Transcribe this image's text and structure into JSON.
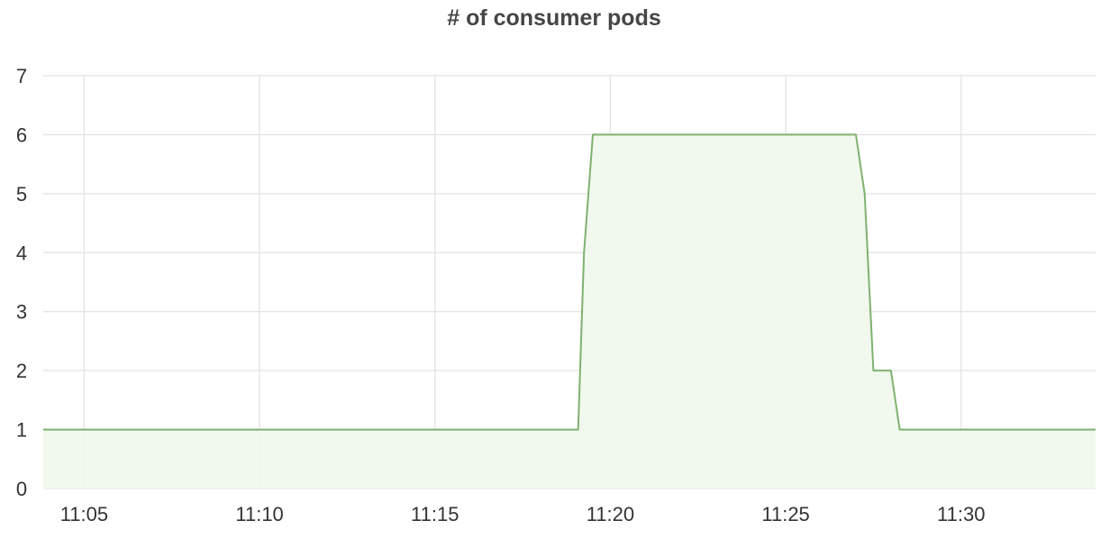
{
  "chart_data": {
    "type": "area",
    "title": "# of consumer pods",
    "xlabel": "",
    "ylabel": "",
    "x_unit": "time (HH:MM)",
    "xlim": [
      "11:03:50",
      "11:33:50"
    ],
    "ylim": [
      0,
      7
    ],
    "grid": true,
    "legend": "none",
    "x_ticks": [
      "11:05",
      "11:10",
      "11:15",
      "11:20",
      "11:25",
      "11:30"
    ],
    "y_ticks": [
      "0",
      "1",
      "2",
      "3",
      "4",
      "5",
      "6",
      "7"
    ],
    "series": [
      {
        "x": [
          "11:03:50",
          "11:19:05",
          "11:19:15",
          "11:19:30",
          "11:27:00",
          "11:27:15",
          "11:27:30",
          "11:28:00",
          "11:28:15",
          "11:33:50"
        ],
        "y": [
          1,
          1,
          4,
          6,
          6,
          5,
          2,
          2,
          1,
          1
        ]
      }
    ],
    "colors": {
      "line": "#7fb26f",
      "fill": "#eff7ec",
      "grid": "#e3e3e3",
      "text": "#333333",
      "title": "#464646"
    }
  }
}
